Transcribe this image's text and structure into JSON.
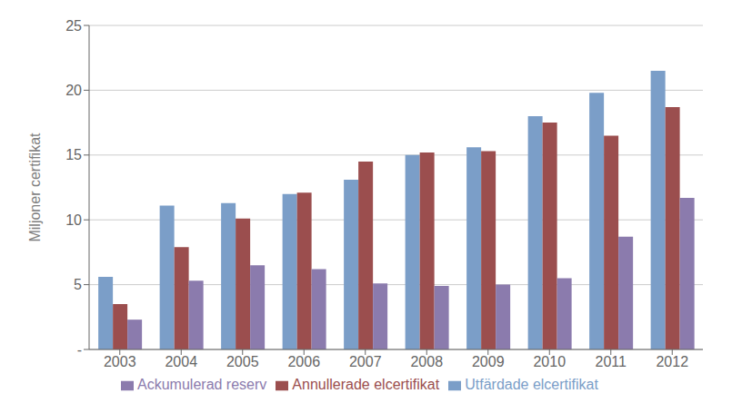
{
  "chart_data": {
    "type": "bar",
    "categories": [
      "2003",
      "2004",
      "2005",
      "2006",
      "2007",
      "2008",
      "2009",
      "2010",
      "2011",
      "2012"
    ],
    "series": [
      {
        "name": "Utfärdade elcertifikat",
        "color": "#7B9EC8",
        "values": [
          5.6,
          11.1,
          11.3,
          12.0,
          13.1,
          15.0,
          15.6,
          18.0,
          19.8,
          21.5
        ]
      },
      {
        "name": "Annullerade elcertifikat",
        "color": "#9B4E4E",
        "values": [
          3.5,
          7.9,
          10.1,
          12.1,
          14.5,
          15.2,
          15.3,
          17.5,
          16.5,
          18.7
        ]
      },
      {
        "name": "Ackumulerad reserv",
        "color": "#8B7BAD",
        "values": [
          2.3,
          5.3,
          6.5,
          6.2,
          5.1,
          4.9,
          5.0,
          5.5,
          8.7,
          11.7
        ]
      }
    ],
    "ylabel": "Miljoner certifikat",
    "ylim": [
      0,
      25
    ],
    "yticks": [
      {
        "value": 0,
        "label": "-"
      },
      5,
      10,
      15,
      20,
      25
    ],
    "grid": true,
    "legend": "bottom"
  }
}
